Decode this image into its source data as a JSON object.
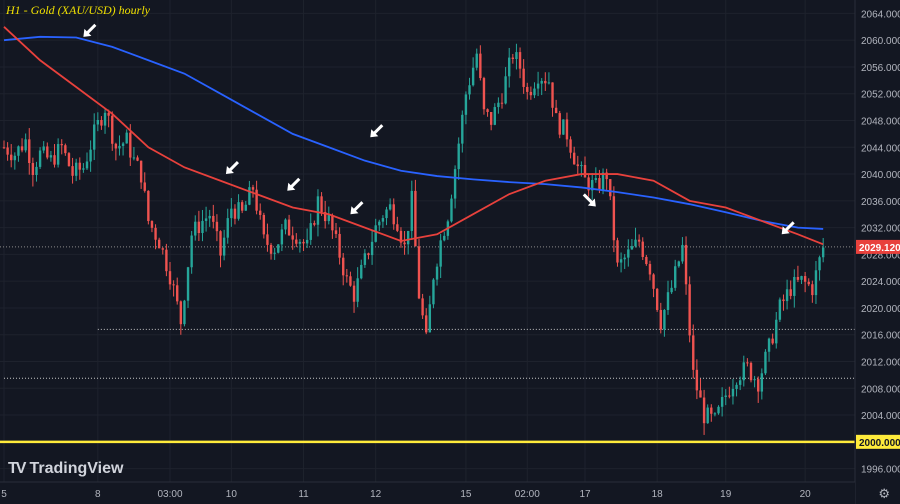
{
  "header": {
    "title": "H1 - Gold (XAU/USD) hourly"
  },
  "branding": {
    "logo_text": "TV",
    "name": "TradingView"
  },
  "colors": {
    "background": "#131722",
    "bull": "#26a69a",
    "bear": "#ef5350",
    "ma_fast": "#e8413c",
    "ma_slow": "#2962ff",
    "support": "#ffeb3b",
    "arrow": "#ffffff",
    "grid": "#1e222d",
    "axis_text": "#b2b5be"
  },
  "chart_data": {
    "type": "candlestick",
    "title": "H1 - Gold (XAU/USD) hourly",
    "ylim": [
      1994,
      2066
    ],
    "y_ticks": [
      "2064.000",
      "2060.000",
      "2056.000",
      "2052.000",
      "2048.000",
      "2044.000",
      "2040.000",
      "2036.000",
      "2032.000",
      "2028.000",
      "2024.000",
      "2020.000",
      "2016.000",
      "2012.000",
      "2008.000",
      "2004.000",
      "1996.000"
    ],
    "x_ticks": [
      "5",
      "8",
      "03:00",
      "10",
      "11",
      "12",
      "15",
      "02:00",
      "17",
      "18",
      "19",
      "20"
    ],
    "last_price": "2029.120",
    "support_level": "2000.000",
    "horizontal_lines": [
      {
        "value": 2016.8,
        "style": "dotted",
        "from_label": "8"
      },
      {
        "value": 2009.5,
        "style": "dotted",
        "from_label": "5"
      }
    ],
    "series": [
      {
        "name": "Close",
        "x": [
          0,
          3,
          6,
          8,
          10,
          13,
          16,
          19,
          22,
          25,
          28,
          31,
          34,
          36,
          38,
          40,
          43,
          46,
          49,
          52,
          55,
          57,
          60,
          63,
          66,
          69,
          72,
          75,
          78,
          81,
          84,
          87,
          90,
          93,
          95,
          97,
          100,
          103,
          105,
          107,
          109,
          111,
          113,
          115,
          117,
          119,
          121,
          123,
          125,
          128,
          131,
          133,
          135,
          138,
          141,
          143,
          145,
          148,
          151,
          153,
          156,
          159,
          161,
          164,
          167,
          170,
          173,
          176,
          179,
          182,
          185,
          188,
          191,
          194,
          197,
          200,
          203,
          206,
          209,
          212,
          215,
          218,
          221,
          224,
          227
        ],
        "values": [
          2044,
          2043,
          2045,
          2041,
          2043,
          2042,
          2044,
          2040,
          2041,
          2046,
          2050,
          2044,
          2045,
          2042,
          2040,
          2033,
          2030,
          2025,
          2018,
          2031,
          2033,
          2034,
          2028,
          2035,
          2034,
          2038,
          2030,
          2029,
          2032,
          2031,
          2029,
          2036,
          2033,
          2028,
          2024,
          2022,
          2027,
          2032,
          2034,
          2035,
          2033,
          2029,
          2036,
          2022,
          2015,
          2025,
          2030,
          2034,
          2041,
          2052,
          2058,
          2049,
          2048,
          2052,
          2058,
          2056,
          2052,
          2055,
          2054,
          2048,
          2046,
          2041,
          2039,
          2038,
          2040,
          2026,
          2028,
          2030,
          2026,
          2018,
          2023,
          2029,
          2010,
          2004,
          2003,
          2007,
          2010,
          2011,
          2009,
          2014,
          2020,
          2023,
          2024,
          2023,
          2029
        ]
      }
    ],
    "ma_fast": {
      "name": "Fast MA (red)",
      "x": [
        0,
        10,
        20,
        30,
        40,
        50,
        60,
        70,
        80,
        90,
        100,
        110,
        120,
        130,
        140,
        150,
        160,
        170,
        180,
        190,
        200,
        210,
        220,
        227
      ],
      "values": [
        2062,
        2057,
        2053,
        2049,
        2044,
        2041,
        2039,
        2037,
        2035,
        2034,
        2032,
        2030,
        2031,
        2034,
        2037,
        2039,
        2040,
        2040,
        2039,
        2036,
        2035,
        2033,
        2031,
        2029.5
      ]
    },
    "ma_slow": {
      "name": "Slow MA (blue)",
      "x": [
        0,
        10,
        20,
        30,
        40,
        50,
        60,
        70,
        80,
        90,
        100,
        110,
        120,
        130,
        140,
        150,
        160,
        170,
        180,
        190,
        200,
        210,
        220,
        227
      ],
      "values": [
        2060,
        2060.5,
        2060.4,
        2059,
        2057,
        2055,
        2052,
        2049,
        2046,
        2044,
        2042,
        2040.5,
        2039.7,
        2039.2,
        2038.8,
        2038.5,
        2038,
        2037.3,
        2036.5,
        2035.5,
        2034.3,
        2033,
        2032,
        2031.8
      ]
    },
    "x_tick_positions": [
      0,
      26,
      46,
      63,
      83,
      103,
      128,
      145,
      161,
      181,
      200,
      222
    ],
    "x_range": [
      0,
      230
    ],
    "annotations": [
      {
        "type": "arrow",
        "x": 22,
        "value": 2060.5
      },
      {
        "type": "arrow",
        "x": 61.5,
        "value": 2040
      },
      {
        "type": "arrow",
        "x": 78.5,
        "value": 2037.5
      },
      {
        "type": "arrow",
        "x": 96,
        "value": 2034
      },
      {
        "type": "arrow",
        "x": 101.5,
        "value": 2045.5
      },
      {
        "type": "arrow",
        "x": 161.5,
        "value": 2036.5,
        "direction": "down-right"
      },
      {
        "type": "arrow",
        "x": 215.5,
        "value": 2031
      }
    ]
  }
}
